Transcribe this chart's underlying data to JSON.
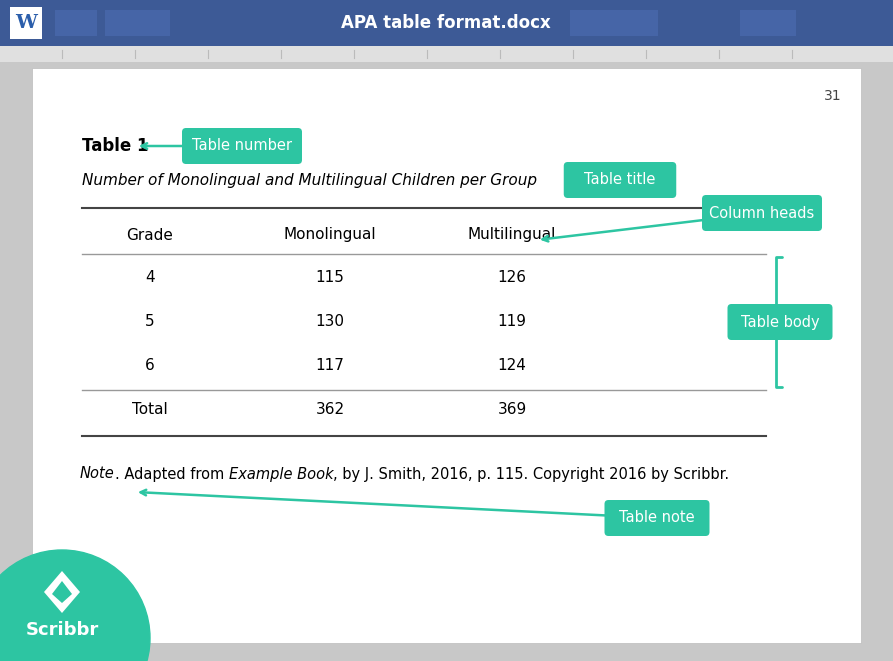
{
  "title_bar_color": "#3D5A96",
  "title_bar_text": "APA table format.docx",
  "page_bg": "#FFFFFF",
  "outer_bg": "#C8C8C8",
  "page_number": "31",
  "table_label": "Table 1",
  "table_title": "Number of Monolingual and Multilingual Children per Group",
  "col_headers": [
    "Grade",
    "Monolingual",
    "Multilingual"
  ],
  "rows": [
    [
      "4",
      "115",
      "126"
    ],
    [
      "5",
      "130",
      "119"
    ],
    [
      "6",
      "117",
      "124"
    ],
    [
      "Total",
      "362",
      "369"
    ]
  ],
  "annotation_color": "#2DC5A2",
  "scribbr_color": "#2DC5A2",
  "line_color": "#999999",
  "thick_line_color": "#444444",
  "btn_color": "#4A6AAD",
  "ruler_color": "#E0E0E0",
  "ruler_tick_color": "#BBBBBB"
}
